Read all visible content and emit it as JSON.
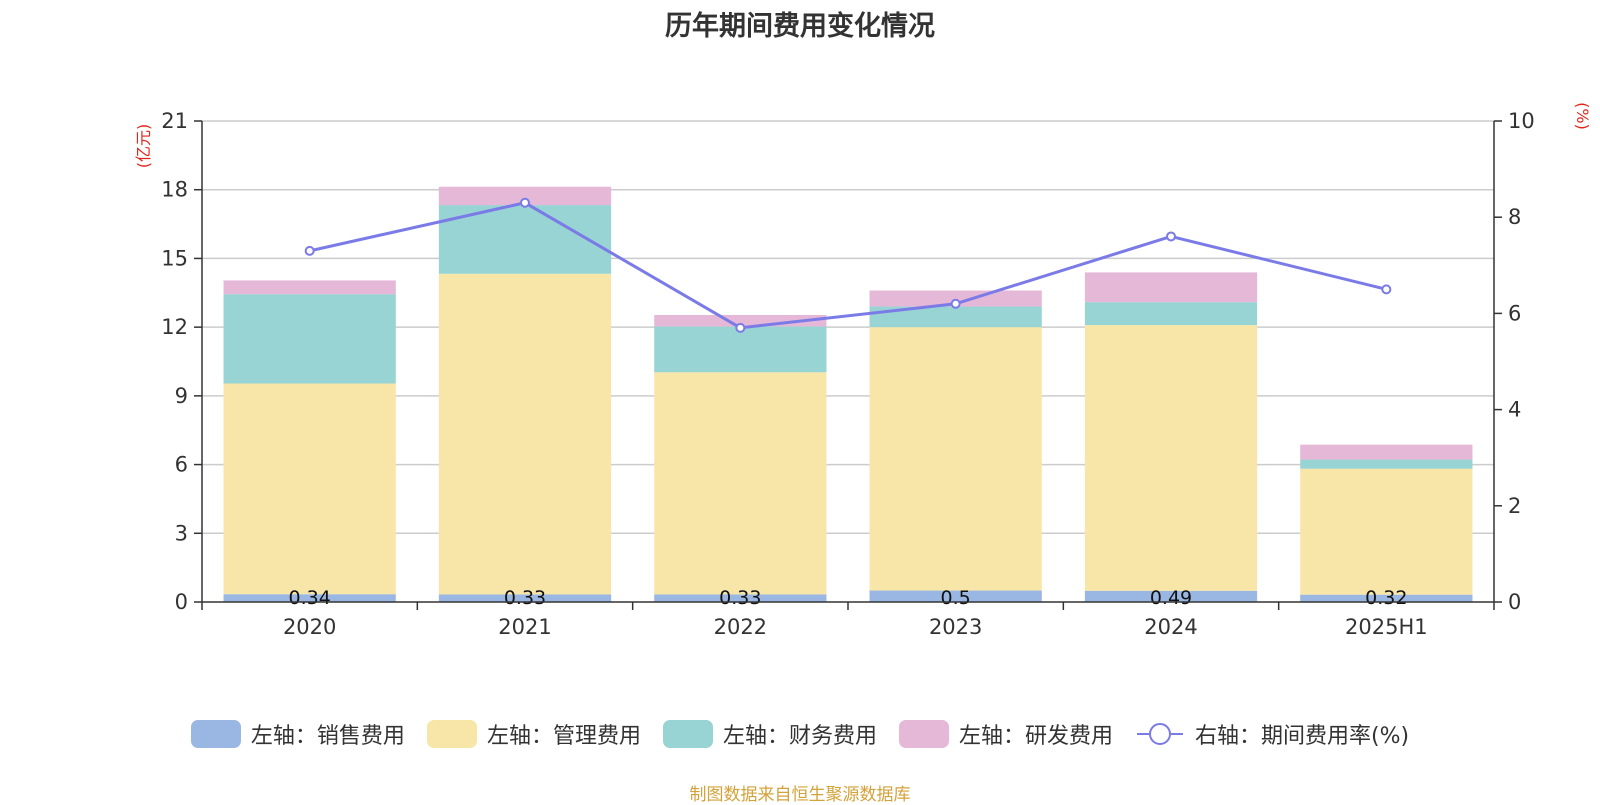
{
  "chart_data": {
    "type": "bar",
    "title": "历年期间费用变化情况",
    "categories": [
      "2020",
      "2021",
      "2022",
      "2023",
      "2024",
      "2025H1"
    ],
    "left_axis": {
      "unit": "(亿元)",
      "ylim": [
        0,
        21
      ],
      "ticks": [
        "0",
        "3",
        "6",
        "9",
        "12",
        "15",
        "18",
        "21"
      ]
    },
    "right_axis": {
      "unit": "(%)",
      "ylim": [
        0,
        10
      ],
      "ticks": [
        "0",
        "2",
        "4",
        "6",
        "8",
        "10"
      ]
    },
    "stacked": true,
    "grid": true,
    "legend_position": "bottom",
    "series": [
      {
        "name": "左轴：销售费用",
        "axis": "left",
        "color": "#9ab6e3",
        "values": [
          0.34,
          0.33,
          0.33,
          0.5,
          0.49,
          0.32
        ],
        "labels": [
          "0.34",
          "0.33",
          "0.33",
          "0.5",
          "0.49",
          "0.32"
        ]
      },
      {
        "name": "左轴：管理费用",
        "axis": "left",
        "color": "#f8e6a8",
        "values": [
          9.2,
          14.0,
          9.7,
          11.5,
          11.6,
          5.5
        ]
      },
      {
        "name": "左轴：财务费用",
        "axis": "left",
        "color": "#98d4d4",
        "values": [
          3.9,
          3.0,
          2.0,
          0.9,
          1.0,
          0.4
        ]
      },
      {
        "name": "左轴：研发费用",
        "axis": "left",
        "color": "#e6b8d8",
        "values": [
          0.6,
          0.8,
          0.5,
          0.7,
          1.3,
          0.65
        ]
      },
      {
        "name": "右轴：期间费用率(%)",
        "axis": "right",
        "type": "line",
        "color": "#7b7be8",
        "values": [
          7.3,
          8.3,
          5.7,
          6.2,
          7.6,
          6.5
        ]
      }
    ]
  },
  "source_note": "制图数据来自恒生聚源数据库"
}
